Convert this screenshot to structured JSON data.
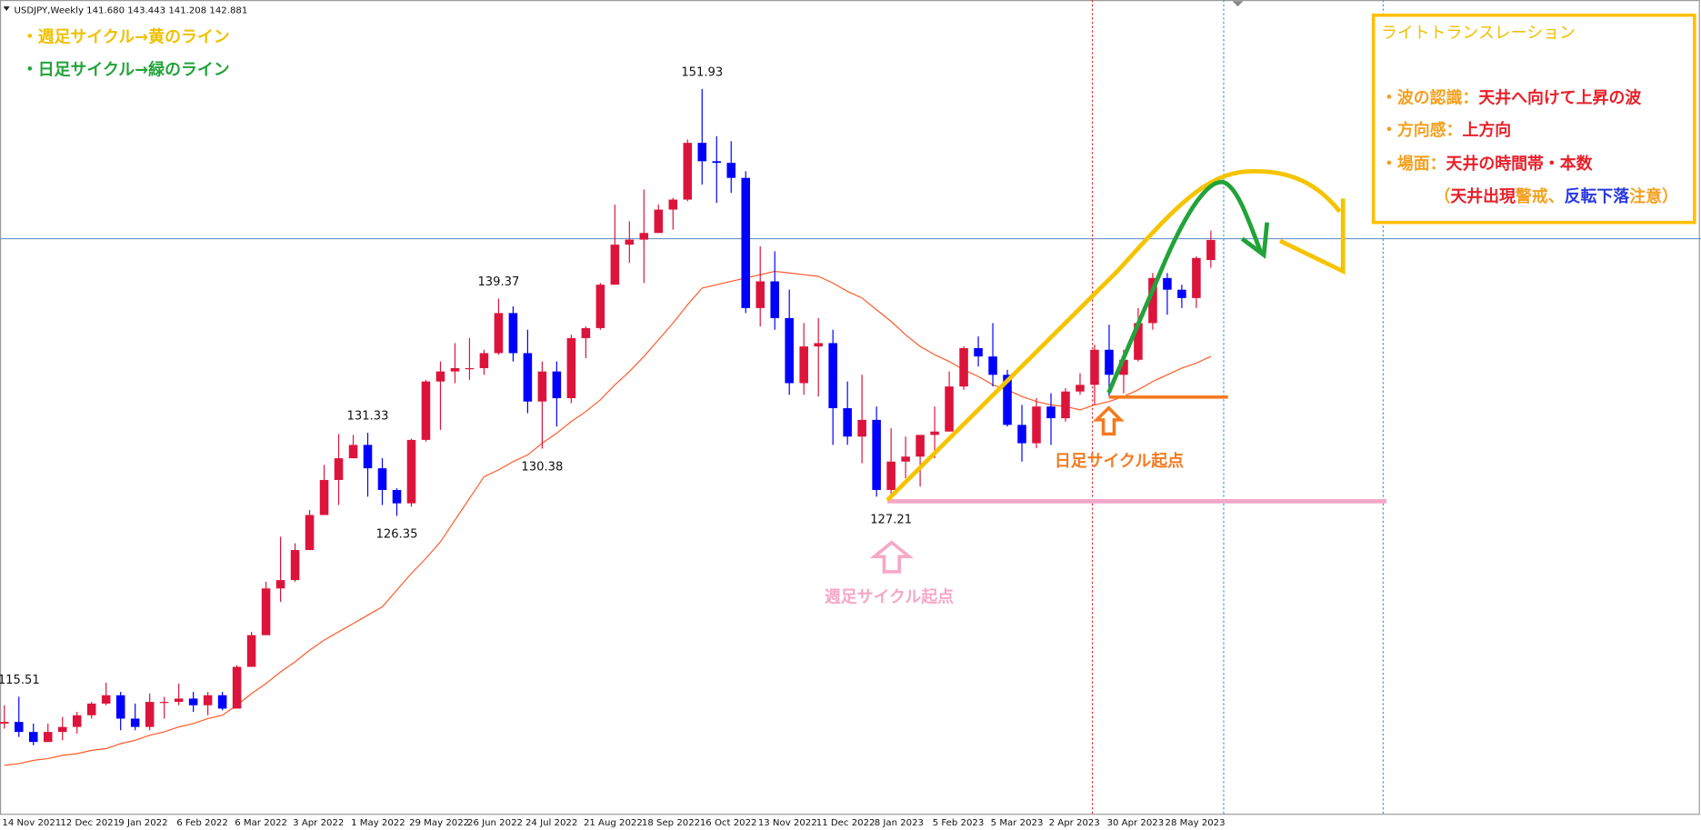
{
  "info": "USDJPY,Weekly 141.680 143.443 141.208 142.881",
  "chart_data": {
    "type": "candlestick",
    "categories": [
      "14 Nov 2021",
      null,
      null,
      null,
      "12 Dec 2021",
      null,
      null,
      null,
      "9 Jan 2022",
      null,
      null,
      null,
      "6 Feb 2022",
      null,
      null,
      null,
      "6 Mar 2022",
      null,
      null,
      null,
      "3 Apr 2022",
      null,
      null,
      null,
      "1 May 2022",
      null,
      null,
      null,
      "29 May 2022",
      null,
      null,
      null,
      "26 Jun 2022",
      null,
      null,
      null,
      "24 Jul 2022",
      null,
      null,
      null,
      "21 Aug 2022",
      null,
      null,
      null,
      "18 Sep 2022",
      null,
      null,
      null,
      "16 Oct 2022",
      null,
      null,
      null,
      "13 Nov 2022",
      null,
      null,
      null,
      "11 Dec 2022",
      null,
      null,
      null,
      "8 Jan 2023",
      null,
      null,
      null,
      "5 Feb 2023",
      null,
      null,
      null,
      "5 Mar 2023",
      null,
      null,
      null,
      "2 Apr 2023",
      null,
      null,
      null,
      "30 Apr 2023",
      null,
      null,
      null,
      "28 May 2023",
      null,
      null,
      null
    ],
    "open": [
      113.9,
      114.0,
      113.4,
      112.8,
      113.4,
      113.7,
      114.4,
      115.1,
      115.6,
      114.2,
      113.7,
      115.2,
      115.2,
      115.4,
      115.0,
      115.6,
      114.8,
      117.3,
      119.2,
      122.0,
      122.5,
      124.3,
      126.4,
      128.5,
      129.8,
      130.6,
      129.2,
      127.9,
      127.1,
      130.9,
      134.4,
      135.0,
      135.2,
      135.2,
      136.1,
      138.5,
      136.1,
      133.2,
      135.0,
      133.4,
      137.0,
      137.6,
      140.2,
      142.6,
      142.9,
      143.3,
      144.7,
      145.3,
      148.7,
      147.6,
      147.5,
      146.6,
      138.8,
      140.4,
      138.2,
      134.3,
      136.5,
      136.7,
      132.8,
      131.1,
      132.1,
      127.9,
      129.6,
      129.9,
      131.2,
      131.4,
      134.1,
      136.4,
      135.9,
      134.8,
      131.8,
      130.7,
      132.9,
      132.2,
      133.8,
      134.2,
      136.3,
      134.8,
      135.7,
      137.9,
      140.6,
      139.9,
      139.4,
      141.68
    ],
    "high": [
      115.0,
      115.51,
      113.9,
      113.9,
      114.3,
      114.6,
      115.2,
      116.35,
      115.8,
      115.1,
      115.7,
      115.5,
      116.3,
      115.8,
      115.8,
      115.8,
      117.4,
      119.4,
      122.4,
      125.1,
      124.7,
      126.7,
      129.4,
      131.25,
      131.2,
      131.33,
      129.8,
      128.0,
      130.98,
      134.5,
      135.6,
      136.7,
      137.0,
      136.3,
      139.37,
      138.9,
      137.5,
      135.6,
      135.6,
      137.2,
      137.7,
      140.3,
      144.99,
      144.0,
      145.9,
      145.0,
      145.4,
      148.9,
      151.93,
      149.1,
      148.8,
      147.0,
      142.5,
      142.2,
      139.9,
      137.9,
      138.2,
      137.5,
      134.4,
      134.8,
      132.9,
      131.6,
      131.1,
      131.2,
      132.9,
      135.0,
      136.5,
      137.1,
      137.9,
      135.1,
      133.0,
      133.4,
      133.7,
      134.0,
      134.9,
      136.6,
      137.8,
      136.3,
      138.8,
      140.9,
      140.9,
      140.2,
      141.9,
      143.443
    ],
    "low": [
      113.6,
      113.1,
      112.6,
      112.8,
      112.9,
      113.3,
      114.2,
      115.0,
      113.5,
      113.5,
      113.5,
      114.2,
      115.0,
      114.6,
      114.4,
      114.7,
      114.8,
      117.3,
      119.2,
      121.2,
      122.4,
      124.3,
      126.4,
      127.0,
      129.8,
      127.5,
      127.0,
      126.35,
      126.9,
      130.8,
      131.5,
      134.3,
      134.5,
      134.8,
      136.0,
      135.6,
      132.5,
      130.38,
      131.7,
      133.1,
      135.8,
      137.5,
      140.2,
      141.5,
      140.3,
      143.3,
      143.5,
      145.2,
      146.2,
      145.1,
      145.7,
      138.5,
      137.7,
      137.5,
      133.6,
      133.6,
      133.5,
      130.6,
      130.6,
      129.5,
      127.5,
      127.21,
      128.6,
      128.1,
      129.8,
      131.4,
      133.9,
      135.3,
      134.1,
      131.7,
      129.6,
      130.4,
      130.6,
      132.0,
      133.6,
      133.0,
      133.5,
      133.7,
      135.6,
      137.5,
      138.4,
      138.8,
      138.8,
      141.208
    ],
    "close": [
      114.0,
      113.4,
      112.8,
      113.4,
      113.7,
      114.4,
      115.1,
      115.6,
      114.2,
      113.7,
      115.2,
      115.2,
      115.4,
      115.0,
      115.6,
      114.8,
      117.3,
      119.2,
      122.0,
      122.5,
      124.3,
      126.4,
      128.5,
      129.8,
      130.6,
      129.2,
      127.9,
      127.1,
      130.9,
      134.4,
      135.0,
      135.2,
      135.2,
      136.1,
      138.5,
      136.1,
      133.2,
      135.0,
      133.4,
      137.0,
      137.6,
      140.2,
      142.6,
      142.9,
      143.3,
      144.7,
      145.3,
      148.7,
      147.6,
      147.5,
      146.6,
      138.8,
      140.4,
      138.2,
      134.3,
      136.5,
      136.7,
      132.8,
      131.1,
      132.1,
      127.9,
      129.6,
      129.9,
      131.2,
      131.4,
      134.1,
      136.4,
      135.9,
      134.8,
      131.8,
      130.7,
      132.9,
      132.2,
      133.8,
      134.2,
      136.3,
      134.8,
      135.7,
      137.9,
      140.6,
      139.9,
      139.4,
      141.8,
      142.881
    ],
    "up_color": "#dc143c",
    "down_color": "#0000ff",
    "ylim": [
      108.5,
      157.26
    ],
    "ma": {
      "color": "#ff5a2a",
      "values": [
        111.4,
        111.5,
        111.7,
        111.8,
        112.0,
        112.1,
        112.3,
        112.4,
        112.7,
        112.9,
        113.2,
        113.4,
        113.7,
        113.9,
        114.2,
        114.4,
        115.0,
        115.7,
        116.3,
        117.0,
        117.6,
        118.3,
        118.9,
        119.4,
        119.9,
        120.4,
        120.9,
        121.9,
        122.9,
        123.8,
        124.8,
        126.1,
        127.4,
        128.7,
        129.1,
        129.6,
        130.0,
        130.7,
        131.3,
        132.0,
        132.6,
        133.3,
        134.2,
        135.0,
        135.9,
        136.9,
        137.9,
        139.0,
        140.0,
        140.2,
        140.4,
        140.6,
        140.8,
        141.0,
        140.9,
        140.8,
        140.7,
        140.3,
        139.8,
        139.4,
        138.7,
        138.0,
        137.2,
        136.5,
        136.0,
        135.6,
        135.1,
        134.7,
        134.2,
        133.9,
        133.5,
        133.2,
        133.0,
        132.9,
        132.7,
        133.0,
        133.2,
        133.5,
        133.9,
        134.4,
        134.8,
        135.2,
        135.5,
        135.9
      ]
    }
  },
  "notes": {
    "weekly_legend": "・週足サイクル→黄のライン",
    "daily_legend": "・日足サイクル→緑のライン",
    "daily_start": "日足サイクル起点",
    "weekly_start": "週足サイクル起点"
  },
  "box": {
    "title": "ライトトランスレーション",
    "lines": [
      [
        "・波の認識：",
        "天井へ向けて上昇の波"
      ],
      [
        "・方向感：",
        "上方向"
      ],
      [
        "・場面：",
        "天井の時間帯・本数"
      ],
      [
        "（",
        "天井出現",
        "警戒",
        "、",
        "反転下落",
        "注意",
        "）"
      ]
    ]
  }
}
